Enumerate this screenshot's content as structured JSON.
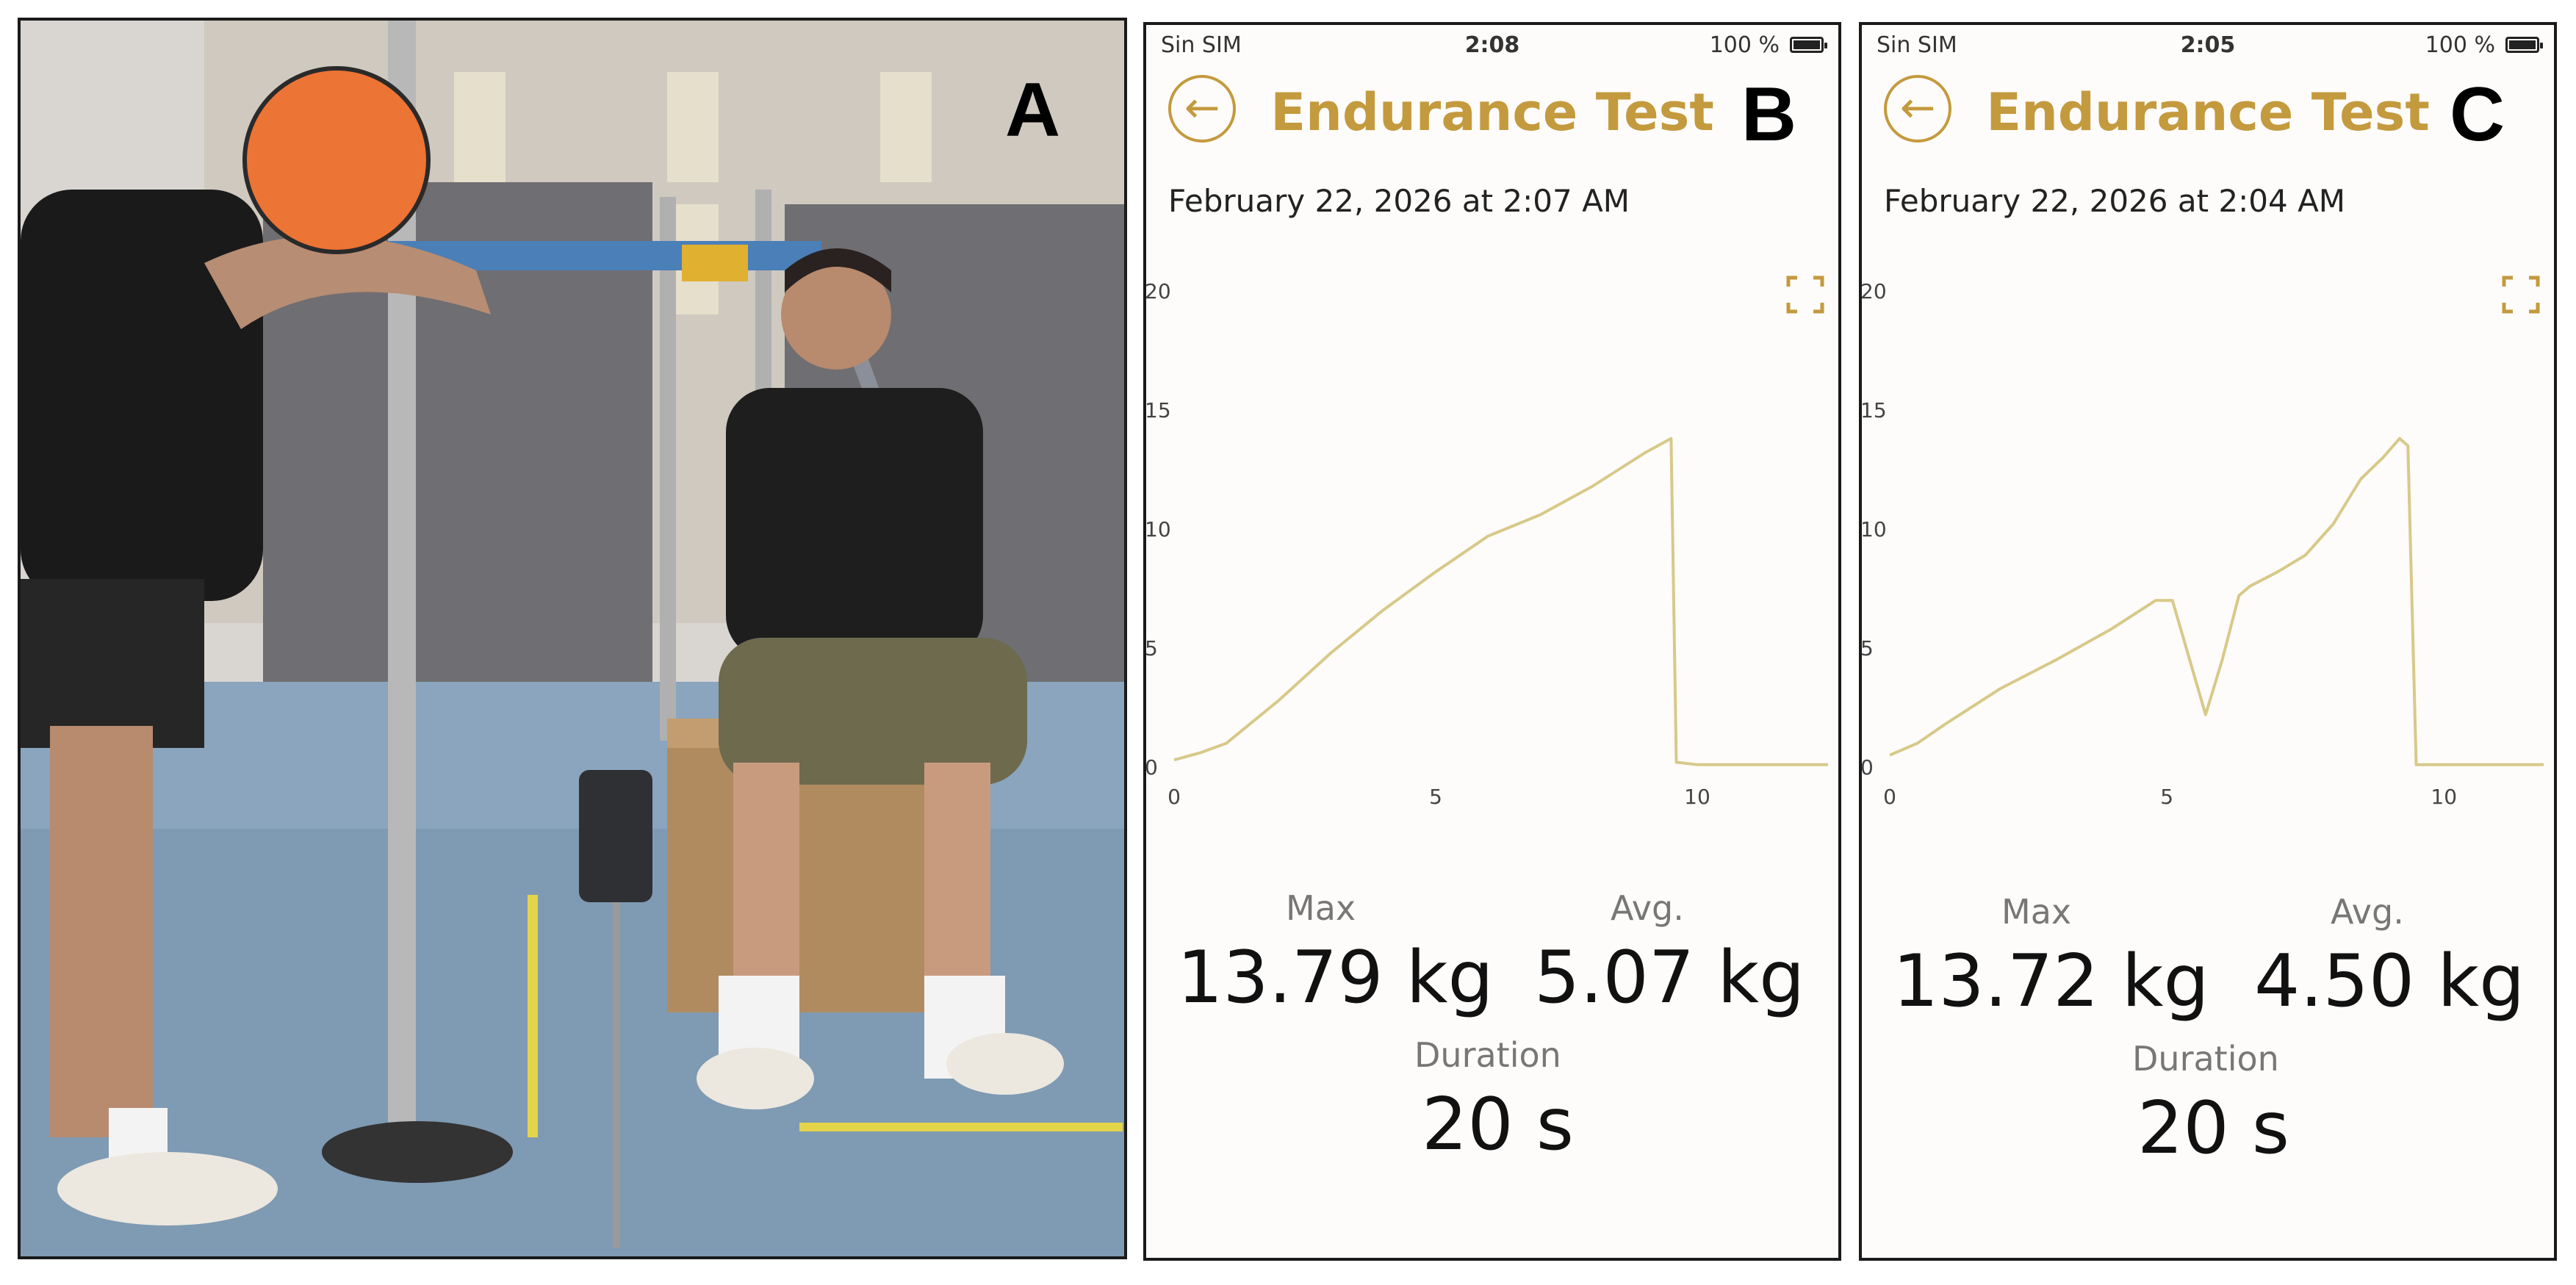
{
  "panels": [
    {
      "letter": "A"
    },
    {
      "letter": "B",
      "status": {
        "carrier": "Sin SIM",
        "time": "2:08",
        "battery": "100 %"
      },
      "title": "Endurance Test",
      "date": "February 22, 2026 at 2:07 AM",
      "stats": {
        "max_label": "Max",
        "max_value": "13.79 kg",
        "avg_label": "Avg.",
        "avg_value": "5.07 kg",
        "duration_label": "Duration",
        "duration_value": "20 s"
      },
      "chart_data": {
        "type": "line",
        "xlim": [
          0,
          12.5
        ],
        "ylim": [
          0,
          20
        ],
        "x_ticks": [
          "0",
          "5",
          "10"
        ],
        "y_ticks": [
          "0",
          "5",
          "10",
          "15",
          "20"
        ],
        "color": "#d8c98a",
        "series": [
          {
            "x": [
              0,
              0.5,
              1,
              2,
              3,
              4,
              5,
              6,
              7,
              8,
              8.5,
              9,
              9.5,
              9.6,
              10,
              11,
              12,
              12.5
            ],
            "y": [
              0.3,
              0.6,
              1.0,
              2.8,
              4.8,
              6.6,
              8.2,
              9.7,
              10.6,
              11.8,
              12.5,
              13.2,
              13.8,
              0.2,
              0.1,
              0.1,
              0.1,
              0.1
            ]
          }
        ]
      }
    },
    {
      "letter": "C",
      "status": {
        "carrier": "Sin SIM",
        "time": "2:05",
        "battery": "100 %"
      },
      "title": "Endurance Test",
      "date": "February 22, 2026 at 2:04 AM",
      "stats": {
        "max_label": "Max",
        "max_value": "13.72 kg",
        "avg_label": "Avg.",
        "avg_value": "4.50 kg",
        "duration_label": "Duration",
        "duration_value": "20 s"
      },
      "chart_data": {
        "type": "line",
        "xlim": [
          0,
          11.8
        ],
        "ylim": [
          0,
          20
        ],
        "x_ticks": [
          "0",
          "5",
          "10"
        ],
        "y_ticks": [
          "0",
          "5",
          "10",
          "15",
          "20"
        ],
        "color": "#d8c98a",
        "series": [
          {
            "x": [
              0,
              0.5,
              1,
              2,
              3,
              4,
              4.8,
              5.1,
              5.7,
              6.0,
              6.3,
              6.5,
              7,
              7.5,
              8,
              8.5,
              8.9,
              9.2,
              9.35,
              9.5,
              10,
              11,
              11.8
            ],
            "y": [
              0.5,
              1.0,
              1.8,
              3.3,
              4.5,
              5.8,
              7.0,
              7.0,
              2.2,
              4.5,
              7.2,
              7.6,
              8.2,
              8.9,
              10.2,
              12.1,
              13.0,
              13.8,
              13.5,
              0.1,
              0.1,
              0.1,
              0.1
            ]
          }
        ]
      }
    }
  ]
}
